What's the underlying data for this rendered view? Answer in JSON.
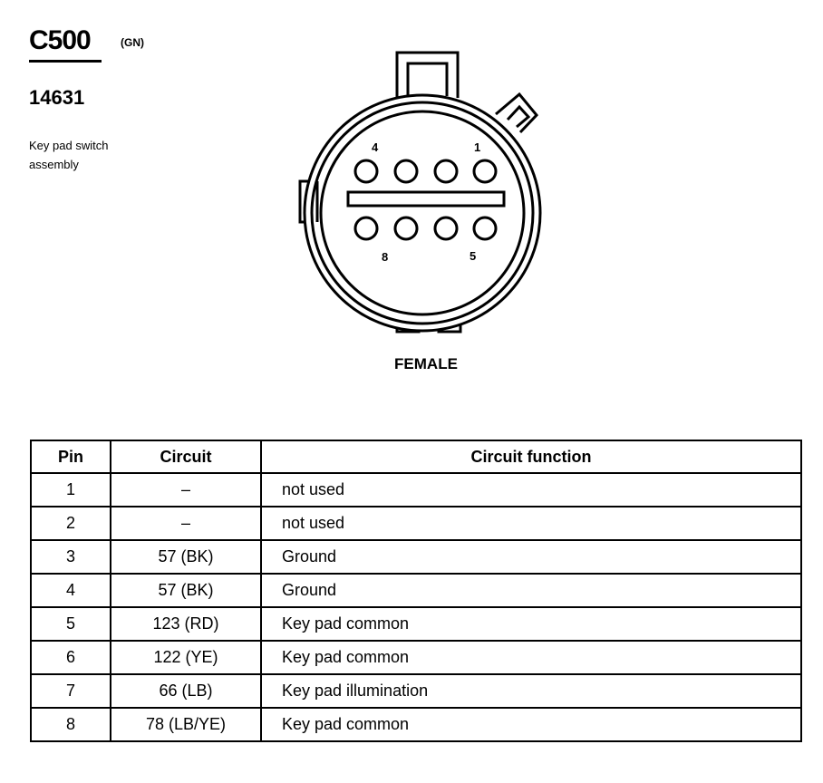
{
  "connector": {
    "id": "C500",
    "color": "(GN)",
    "part_number": "14631",
    "description": "Key pad switch assembly",
    "view": "FEMALE",
    "pin_labels": {
      "top_left": "4",
      "top_right": "1",
      "bottom_left": "8",
      "bottom_right": "5"
    }
  },
  "table": {
    "headers": [
      "Pin",
      "Circuit",
      "Circuit function"
    ],
    "rows": [
      {
        "pin": "1",
        "circuit": "–",
        "function": "not used"
      },
      {
        "pin": "2",
        "circuit": "–",
        "function": "not used"
      },
      {
        "pin": "3",
        "circuit": "57 (BK)",
        "function": "Ground"
      },
      {
        "pin": "4",
        "circuit": "57 (BK)",
        "function": "Ground"
      },
      {
        "pin": "5",
        "circuit": "123 (RD)",
        "function": "Key pad common"
      },
      {
        "pin": "6",
        "circuit": "122 (YE)",
        "function": "Key pad common"
      },
      {
        "pin": "7",
        "circuit": "66 (LB)",
        "function": "Key pad illumination"
      },
      {
        "pin": "8",
        "circuit": "78 (LB/YE)",
        "function": "Key pad common"
      }
    ]
  }
}
